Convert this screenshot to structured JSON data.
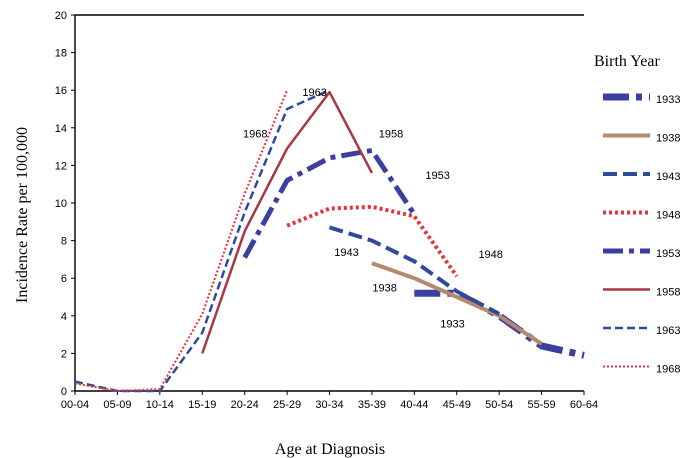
{
  "chart_data": {
    "type": "line",
    "title": "",
    "xlabel": "Age at Diagnosis",
    "ylabel": "Incidence Rate per 100,000",
    "ylim": [
      0,
      20
    ],
    "yticks": [
      0,
      2,
      4,
      6,
      8,
      10,
      12,
      14,
      16,
      18,
      20
    ],
    "categories": [
      "00-04",
      "05-09",
      "10-14",
      "15-19",
      "20-24",
      "25-29",
      "30-34",
      "35-39",
      "40-44",
      "45-49",
      "50-54",
      "55-59",
      "60-64"
    ],
    "grid": false,
    "legend": {
      "title": "Birth Year",
      "position": "right"
    },
    "series": [
      {
        "name": "1933",
        "color": "#3a3fa0",
        "dash": "long-dash-dot",
        "width": 7,
        "values": [
          null,
          null,
          null,
          null,
          null,
          null,
          null,
          null,
          5.2,
          5.2,
          4.0,
          2.4,
          1.9
        ]
      },
      {
        "name": "1938",
        "color": "#b38a6e",
        "dash": "solid",
        "width": 4,
        "values": [
          null,
          null,
          null,
          null,
          null,
          null,
          null,
          6.8,
          6.0,
          5.0,
          4.0,
          2.5,
          null
        ]
      },
      {
        "name": "1943",
        "color": "#2f4a9a",
        "dash": "long-dash",
        "width": 4,
        "values": [
          null,
          null,
          null,
          null,
          null,
          null,
          8.7,
          8.0,
          6.9,
          5.3,
          4.1,
          null,
          null
        ]
      },
      {
        "name": "1948",
        "color": "#e8313d",
        "dash": "dotted",
        "width": 4,
        "values": [
          null,
          null,
          null,
          null,
          null,
          8.8,
          9.7,
          9.8,
          9.3,
          6.1,
          null,
          null,
          null
        ]
      },
      {
        "name": "1953",
        "color": "#3a3fa0",
        "dash": "dash-dot",
        "width": 5,
        "values": [
          null,
          null,
          null,
          null,
          7.1,
          11.2,
          12.4,
          12.8,
          9.4,
          null,
          null,
          null,
          null
        ]
      },
      {
        "name": "1958",
        "color": "#a83844",
        "dash": "solid",
        "width": 2.5,
        "values": [
          null,
          null,
          null,
          2.0,
          8.5,
          12.9,
          15.9,
          11.6,
          null,
          null,
          null,
          null,
          null
        ]
      },
      {
        "name": "1963",
        "color": "#2f4a9a",
        "dash": "dashed",
        "width": 2.5,
        "values": [
          0.5,
          0.0,
          0.0,
          3.1,
          9.5,
          15.0,
          16.0,
          null,
          null,
          null,
          null,
          null,
          null
        ]
      },
      {
        "name": "1968",
        "color": "#e8313d",
        "dash": "fine-dotted",
        "width": 2,
        "values": [
          0.4,
          0.0,
          0.1,
          4.1,
          10.5,
          16.0,
          null,
          null,
          null,
          null,
          null,
          null,
          null
        ]
      }
    ],
    "annotations": [
      {
        "text": "1963",
        "x": 5.65,
        "y": 15.9
      },
      {
        "text": "1968",
        "x": 4.25,
        "y": 13.7
      },
      {
        "text": "1958",
        "x": 7.45,
        "y": 13.7
      },
      {
        "text": "1953",
        "x": 8.55,
        "y": 11.5
      },
      {
        "text": "1948",
        "x": 9.8,
        "y": 7.3
      },
      {
        "text": "1943",
        "x": 6.4,
        "y": 7.4
      },
      {
        "text": "1938",
        "x": 7.3,
        "y": 5.5
      },
      {
        "text": "1933",
        "x": 8.9,
        "y": 3.6
      }
    ]
  }
}
